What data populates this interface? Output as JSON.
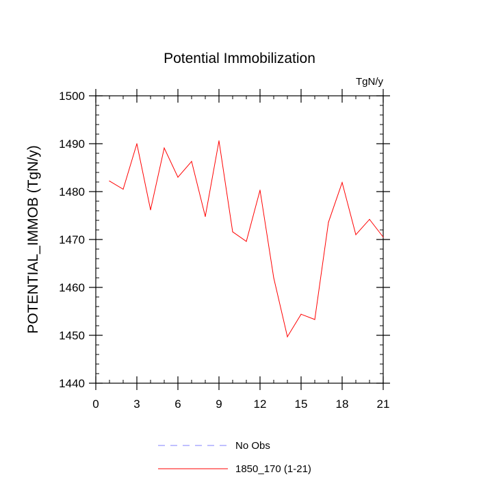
{
  "chart_data": {
    "type": "line",
    "title": "Potential Immobilization",
    "units_label": "TgN/y",
    "xlabel": "",
    "ylabel": "POTENTIAL_IMMOB  (TgN/y)",
    "xlim": [
      0,
      21
    ],
    "ylim": [
      1440,
      1500
    ],
    "x_ticks": [
      0,
      3,
      6,
      9,
      12,
      15,
      18,
      21
    ],
    "y_ticks": [
      1440,
      1450,
      1460,
      1470,
      1480,
      1490,
      1500
    ],
    "x_minor_step": 1,
    "y_minor_step": 2,
    "grid": false,
    "legend_position": "bottom-center",
    "series": [
      {
        "name": "1850_170 (1-21)",
        "color": "#ff0000",
        "style": "solid",
        "x": [
          1,
          2,
          3,
          4,
          5,
          6,
          7,
          8,
          9,
          10,
          11,
          12,
          13,
          14,
          15,
          16,
          17,
          18,
          19,
          20,
          21
        ],
        "values": [
          1482.2,
          1480.5,
          1490.0,
          1476.2,
          1489.1,
          1483.0,
          1486.3,
          1474.8,
          1490.6,
          1471.6,
          1469.6,
          1480.3,
          1462.0,
          1449.7,
          1454.4,
          1453.3,
          1473.6,
          1481.9,
          1471.0,
          1474.2,
          1470.5
        ]
      }
    ],
    "legend": [
      {
        "label": "No Obs",
        "color": "#8080ff",
        "style": "dashed"
      },
      {
        "label": "1850_170 (1-21)",
        "color": "#ff0000",
        "style": "solid"
      }
    ]
  }
}
